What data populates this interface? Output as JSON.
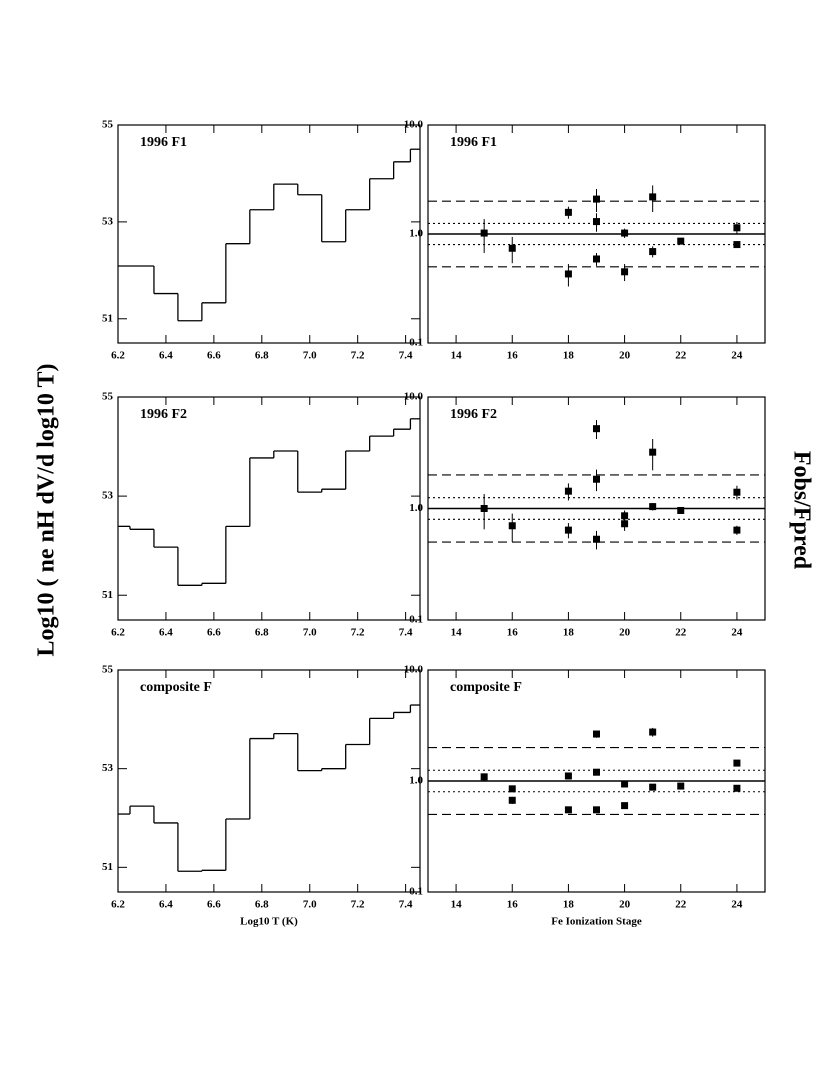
{
  "figure": {
    "ylabel_left": "Log10 ( ne nH dV/d log10 T)",
    "ylabel_right": "Fobs/Fpred"
  },
  "chart_data": [
    {
      "type": "histogram",
      "title": "1996 F1",
      "bins": [
        6.2,
        6.35,
        6.45,
        6.55,
        6.65,
        6.75,
        6.85,
        6.95,
        7.05,
        7.15,
        7.25,
        7.35,
        7.42,
        7.46
      ],
      "values": [
        52.09,
        51.52,
        50.96,
        51.33,
        52.55,
        53.25,
        53.78,
        53.56,
        52.59,
        53.25,
        53.89,
        54.24,
        54.5
      ],
      "xlim": [
        6.2,
        7.46
      ],
      "ylim": [
        50.5,
        55
      ],
      "xticks": [
        6.2,
        6.4,
        6.6,
        6.8,
        {
          "value": 7,
          "label": "7.0"
        },
        7.2,
        7.4
      ],
      "yticks": [
        51,
        53,
        55
      ],
      "color": "#000000"
    },
    {
      "type": "scatter",
      "title": "1996 F1",
      "x": [
        15,
        16,
        18,
        18,
        19,
        19,
        19,
        20,
        20,
        21,
        21,
        22,
        24,
        24
      ],
      "values": [
        1.02,
        0.74,
        1.58,
        0.43,
        2.09,
        1.3,
        0.59,
        1.02,
        0.45,
        2.19,
        0.69,
        0.86,
        1.14,
        0.8
      ],
      "errors": [
        0.35,
        0.2,
        0.2,
        0.1,
        0.5,
        0.25,
        0.08,
        0.1,
        0.08,
        0.6,
        0.08,
        0.05,
        0.15,
        0.05
      ],
      "xlim": [
        13,
        25
      ],
      "ylim": [
        0.1,
        10
      ],
      "log_y": true,
      "xticks": [
        14,
        16,
        18,
        20,
        22,
        24
      ],
      "yticks": [
        {
          "value": 0.1,
          "label": "0.1"
        },
        {
          "value": 1,
          "label": "1.0"
        },
        {
          "value": 10,
          "label": "10.0"
        }
      ],
      "reference_lines": [
        {
          "value": 1,
          "style": "solid"
        },
        {
          "value": 1.25,
          "style": "dotted"
        },
        {
          "value": 0.8,
          "style": "dotted"
        },
        {
          "value": 2,
          "style": "dashed"
        },
        {
          "value": 0.5,
          "style": "dashed"
        }
      ],
      "color": "#000000"
    },
    {
      "type": "histogram",
      "title": "1996 F2",
      "bins": [
        6.2,
        6.25,
        6.35,
        6.45,
        6.55,
        6.65,
        6.75,
        6.85,
        6.95,
        7.05,
        7.15,
        7.25,
        7.35,
        7.42,
        7.46
      ],
      "values": [
        52.39,
        52.33,
        51.97,
        51.2,
        51.24,
        52.39,
        53.77,
        53.91,
        53.08,
        53.14,
        53.91,
        54.21,
        54.35,
        54.56
      ],
      "xlim": [
        6.2,
        7.46
      ],
      "ylim": [
        50.5,
        55
      ],
      "xticks": [
        6.2,
        6.4,
        6.6,
        6.8,
        {
          "value": 7,
          "label": "7.0"
        },
        7.2,
        7.4
      ],
      "yticks": [
        51,
        53,
        55
      ],
      "color": "#000000"
    },
    {
      "type": "scatter",
      "title": "1996 F2",
      "x": [
        15,
        16,
        18,
        18,
        19,
        19,
        19,
        20,
        20,
        21,
        21,
        22,
        24,
        24
      ],
      "values": [
        1.0,
        0.7,
        1.43,
        0.64,
        5.2,
        1.83,
        0.53,
        0.86,
        0.73,
        3.2,
        1.04,
        0.96,
        1.4,
        0.64
      ],
      "errors": [
        0.35,
        0.2,
        0.25,
        0.1,
        1.0,
        0.4,
        0.1,
        0.1,
        0.1,
        1.0,
        0.08,
        0.05,
        0.2,
        0.06
      ],
      "xlim": [
        13,
        25
      ],
      "ylim": [
        0.1,
        10
      ],
      "log_y": true,
      "xticks": [
        14,
        16,
        18,
        20,
        22,
        24
      ],
      "yticks": [
        {
          "value": 0.1,
          "label": "0.1"
        },
        {
          "value": 1,
          "label": "1.0"
        },
        {
          "value": 10,
          "label": "10.0"
        }
      ],
      "reference_lines": [
        {
          "value": 1,
          "style": "solid"
        },
        {
          "value": 1.25,
          "style": "dotted"
        },
        {
          "value": 0.8,
          "style": "dotted"
        },
        {
          "value": 2,
          "style": "dashed"
        },
        {
          "value": 0.5,
          "style": "dashed"
        }
      ],
      "color": "#000000"
    },
    {
      "type": "histogram",
      "title": "composite F",
      "xlabel": "Log10 T (K)",
      "bins": [
        6.2,
        6.25,
        6.35,
        6.45,
        6.55,
        6.65,
        6.75,
        6.85,
        6.95,
        7.05,
        7.15,
        7.25,
        7.35,
        7.42,
        7.46
      ],
      "values": [
        52.08,
        52.24,
        51.9,
        50.92,
        50.94,
        51.98,
        53.61,
        53.71,
        52.96,
        53.0,
        53.49,
        54.02,
        54.14,
        54.29
      ],
      "xlim": [
        6.2,
        7.46
      ],
      "ylim": [
        50.5,
        55
      ],
      "xticks": [
        6.2,
        6.4,
        6.6,
        6.8,
        {
          "value": 7,
          "label": "7.0"
        },
        7.2,
        7.4
      ],
      "yticks": [
        51,
        53,
        55
      ],
      "color": "#000000"
    },
    {
      "type": "scatter",
      "title": "composite F",
      "xlabel": "Fe Ionization Stage",
      "x": [
        15,
        16,
        16,
        18,
        18,
        19,
        19,
        19,
        20,
        20,
        21,
        21,
        22,
        24,
        24
      ],
      "values": [
        1.09,
        0.85,
        0.67,
        1.11,
        0.55,
        2.65,
        1.2,
        0.55,
        0.94,
        0.6,
        2.76,
        0.88,
        0.9,
        1.45,
        0.86
      ],
      "errors": [
        0.08,
        0.04,
        0.05,
        0.05,
        0.03,
        0.2,
        0.06,
        0.03,
        0.04,
        0.04,
        0.25,
        0.04,
        0.04,
        0.06,
        0.04
      ],
      "xlim": [
        13,
        25
      ],
      "ylim": [
        0.1,
        10
      ],
      "log_y": true,
      "xticks": [
        14,
        16,
        18,
        20,
        22,
        24
      ],
      "yticks": [
        {
          "value": 0.1,
          "label": "0.1"
        },
        {
          "value": 1,
          "label": "1.0"
        },
        {
          "value": 10,
          "label": "10.0"
        }
      ],
      "reference_lines": [
        {
          "value": 1,
          "style": "solid"
        },
        {
          "value": 1.25,
          "style": "dotted"
        },
        {
          "value": 0.8,
          "style": "dotted"
        },
        {
          "value": 2,
          "style": "dashed"
        },
        {
          "value": 0.5,
          "style": "dashed"
        }
      ],
      "color": "#000000"
    }
  ]
}
